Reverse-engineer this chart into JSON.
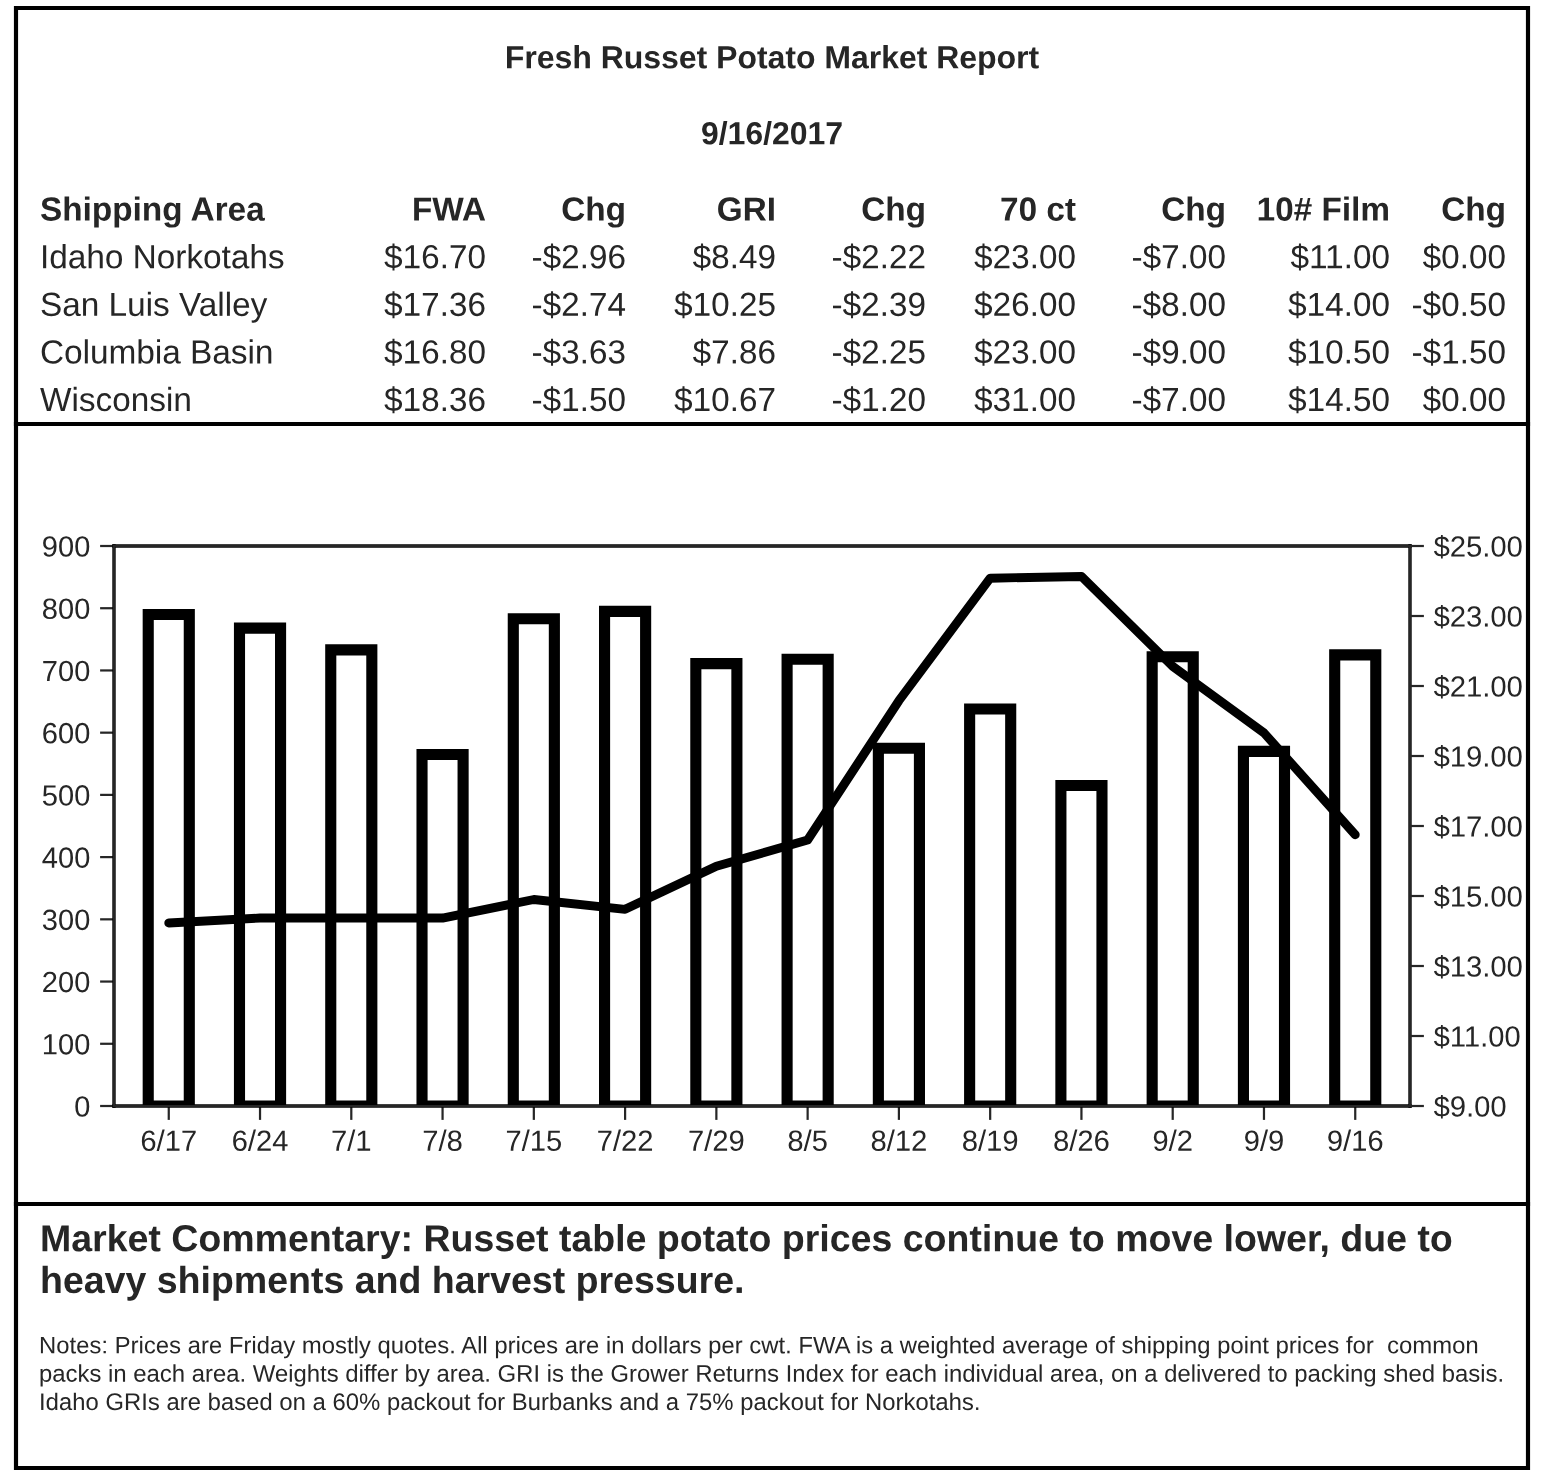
{
  "chart_data": [
    {
      "type": "other",
      "title": "Fresh Russet Potato Market Report",
      "subtitle": "9/16/2017",
      "annotations": [
        "Shipping Area",
        "FWA",
        "Chg",
        "GRI",
        "Chg",
        "70 ct",
        "Chg",
        "10# Film",
        "Chg",
        "Idaho Norkotahs",
        "$16.70",
        "-$2.96",
        "$8.49",
        "-$2.22",
        "$23.00",
        "-$7.00",
        "$11.00",
        "$0.00",
        "San Luis Valley",
        "$17.36",
        "-$2.74",
        "$10.25",
        "-$2.39",
        "$26.00",
        "-$8.00",
        "$14.00",
        "-$0.50",
        "Columbia Basin",
        "$16.80",
        "-$3.63",
        "$7.86",
        "-$2.25",
        "$23.00",
        "-$9.00",
        "$10.50",
        "-$1.50",
        "Wisconsin",
        "$18.36",
        "-$1.50",
        "$10.67",
        "-$1.20",
        "$31.00",
        "-$7.00",
        "$14.50",
        "$0.00"
      ]
    },
    {
      "type": "bar",
      "categories": [
        "6/17",
        "6/24",
        "7/1",
        "7/8",
        "7/15",
        "7/22",
        "7/29",
        "8/5",
        "8/12",
        "8/19",
        "8/26",
        "9/2",
        "9/9",
        "9/16"
      ],
      "series": [
        {
          "type": "bar",
          "color": "#ffffff",
          "values": [
            790,
            768,
            733,
            565,
            783,
            795,
            711,
            718,
            575,
            638,
            515,
            722,
            570,
            725
          ]
        },
        {
          "type": "line",
          "axis": "y2",
          "color": "#000000",
          "values": [
            14.23,
            14.37,
            14.37,
            14.37,
            14.9,
            14.62,
            15.85,
            16.6,
            20.58,
            24.08,
            24.13,
            21.56,
            19.66,
            16.75
          ]
        }
      ],
      "ylim": [
        0,
        900
      ],
      "yticks": [
        0,
        100,
        200,
        300,
        400,
        500,
        600,
        700,
        800,
        900
      ],
      "y2lim": [
        9,
        25
      ],
      "y2ticks": [
        {
          "value": 9,
          "label": "$9.00"
        },
        {
          "value": 11,
          "label": "$11.00"
        },
        {
          "value": 13,
          "label": "$13.00"
        },
        {
          "value": 15,
          "label": "$15.00"
        },
        {
          "value": 17,
          "label": "$17.00"
        },
        {
          "value": 19,
          "label": "$19.00"
        },
        {
          "value": 21,
          "label": "$21.00"
        },
        {
          "value": 23,
          "label": "$23.00"
        },
        {
          "value": 25,
          "label": "$25.00"
        }
      ],
      "grid": false,
      "legend": false,
      "marker": "none",
      "line_style": "solid",
      "annotations": [
        "Market Commentary: Russet table potato prices continue to move lower, due to heavy shipments and harvest pressure.",
        "Notes: Prices are Friday mostly quotes. All prices are in dollars per cwt. FWA is a weighted average of shipping point prices for  common packs in each area. Weights differ by area. GRI is the Grower Returns Index for each individual area, on a delivered to packing shed basis. Idaho GRIs are based on a 60% packout for Burbanks and a 75% packout for Norkotahs."
      ]
    }
  ]
}
